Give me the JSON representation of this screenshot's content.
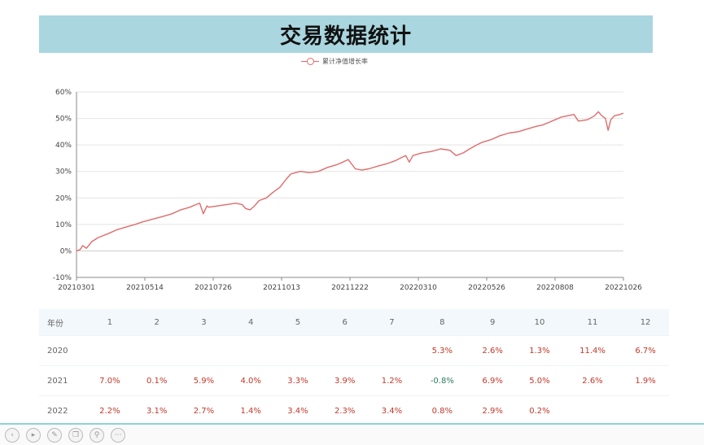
{
  "header": {
    "title": "交易数据统计"
  },
  "chart_data": {
    "type": "line",
    "title": "",
    "xlabel": "",
    "ylabel": "",
    "ylim": [
      -10,
      60
    ],
    "yticks": [
      "60%",
      "50%",
      "40%",
      "30%",
      "20%",
      "10%",
      "0%",
      "-10%"
    ],
    "ytick_values": [
      60,
      50,
      40,
      30,
      20,
      10,
      0,
      -10
    ],
    "xticks": [
      "20210301",
      "20210514",
      "20210726",
      "20211013",
      "20211222",
      "20220310",
      "20220526",
      "20220808",
      "20221026"
    ],
    "grid": true,
    "legend_position": "top-center",
    "series": [
      {
        "name": "累计净值增长率",
        "color": "#e06c6c",
        "points": [
          [
            "2021-03-01",
            0
          ],
          [
            "2021-03-05",
            0.5
          ],
          [
            "2021-03-08",
            2
          ],
          [
            "2021-03-12",
            1
          ],
          [
            "2021-03-18",
            3.5
          ],
          [
            "2021-03-25",
            5
          ],
          [
            "2021-04-05",
            6.5
          ],
          [
            "2021-04-15",
            8
          ],
          [
            "2021-04-25",
            9
          ],
          [
            "2021-05-05",
            10
          ],
          [
            "2021-05-14",
            11
          ],
          [
            "2021-05-25",
            12
          ],
          [
            "2021-06-05",
            13
          ],
          [
            "2021-06-15",
            14
          ],
          [
            "2021-06-25",
            15.5
          ],
          [
            "2021-07-05",
            16.5
          ],
          [
            "2021-07-12",
            17.5
          ],
          [
            "2021-07-16",
            18
          ],
          [
            "2021-07-20",
            14
          ],
          [
            "2021-07-24",
            17
          ],
          [
            "2021-07-26",
            16.5
          ],
          [
            "2021-08-05",
            17
          ],
          [
            "2021-08-15",
            17.5
          ],
          [
            "2021-08-25",
            18
          ],
          [
            "2021-09-01",
            17.5
          ],
          [
            "2021-09-05",
            16
          ],
          [
            "2021-09-10",
            15.5
          ],
          [
            "2021-09-15",
            17
          ],
          [
            "2021-09-20",
            19
          ],
          [
            "2021-09-28",
            20
          ],
          [
            "2021-10-05",
            22
          ],
          [
            "2021-10-13",
            24
          ],
          [
            "2021-10-20",
            27
          ],
          [
            "2021-10-25",
            29
          ],
          [
            "2021-10-30",
            29.5
          ],
          [
            "2021-11-05",
            30
          ],
          [
            "2021-11-15",
            29.5
          ],
          [
            "2021-11-25",
            30
          ],
          [
            "2021-12-05",
            31.5
          ],
          [
            "2021-12-15",
            32.5
          ],
          [
            "2021-12-22",
            33.5
          ],
          [
            "2021-12-28",
            34.5
          ],
          [
            "2022-01-05",
            31
          ],
          [
            "2022-01-12",
            30.5
          ],
          [
            "2022-01-20",
            31
          ],
          [
            "2022-01-30",
            32
          ],
          [
            "2022-02-10",
            33
          ],
          [
            "2022-02-18",
            34
          ],
          [
            "2022-02-24",
            35
          ],
          [
            "2022-03-02",
            36
          ],
          [
            "2022-03-06",
            33.5
          ],
          [
            "2022-03-10",
            36
          ],
          [
            "2022-03-20",
            37
          ],
          [
            "2022-03-30",
            37.5
          ],
          [
            "2022-04-10",
            38.5
          ],
          [
            "2022-04-20",
            38
          ],
          [
            "2022-04-27",
            36
          ],
          [
            "2022-05-05",
            37
          ],
          [
            "2022-05-12",
            38.5
          ],
          [
            "2022-05-20",
            40
          ],
          [
            "2022-05-26",
            41
          ],
          [
            "2022-06-05",
            42
          ],
          [
            "2022-06-15",
            43.5
          ],
          [
            "2022-06-25",
            44.5
          ],
          [
            "2022-07-05",
            45
          ],
          [
            "2022-07-15",
            46
          ],
          [
            "2022-07-25",
            47
          ],
          [
            "2022-08-01",
            47.5
          ],
          [
            "2022-08-08",
            48.5
          ],
          [
            "2022-08-15",
            49.5
          ],
          [
            "2022-08-22",
            50.5
          ],
          [
            "2022-08-29",
            51
          ],
          [
            "2022-09-05",
            51.5
          ],
          [
            "2022-09-10",
            49
          ],
          [
            "2022-09-20",
            49.5
          ],
          [
            "2022-09-28",
            51
          ],
          [
            "2022-10-02",
            52.5
          ],
          [
            "2022-10-06",
            51
          ],
          [
            "2022-10-10",
            50
          ],
          [
            "2022-10-13",
            45.5
          ],
          [
            "2022-10-16",
            49.5
          ],
          [
            "2022-10-20",
            51
          ],
          [
            "2022-10-26",
            51.5
          ],
          [
            "2022-10-30",
            52
          ]
        ]
      }
    ]
  },
  "table": {
    "header_label": "年份",
    "months": [
      "1",
      "2",
      "3",
      "4",
      "5",
      "6",
      "7",
      "8",
      "9",
      "10",
      "11",
      "12"
    ],
    "rows": [
      {
        "year": "2020",
        "values": [
          "",
          "",
          "",
          "",
          "",
          "",
          "",
          "5.3%",
          "2.6%",
          "1.3%",
          "11.4%",
          "6.7%"
        ]
      },
      {
        "year": "2021",
        "values": [
          "7.0%",
          "0.1%",
          "5.9%",
          "4.0%",
          "3.3%",
          "3.9%",
          "1.2%",
          "-0.8%",
          "6.9%",
          "5.0%",
          "2.6%",
          "1.9%"
        ]
      },
      {
        "year": "2022",
        "values": [
          "2.2%",
          "3.1%",
          "2.7%",
          "1.4%",
          "3.4%",
          "2.3%",
          "3.4%",
          "0.8%",
          "2.9%",
          "0.2%",
          "",
          ""
        ]
      }
    ]
  },
  "toolbar": {
    "icons": [
      "prev-icon",
      "play-icon",
      "pen-icon",
      "copy-icon",
      "zoom-icon",
      "more-icon"
    ]
  }
}
